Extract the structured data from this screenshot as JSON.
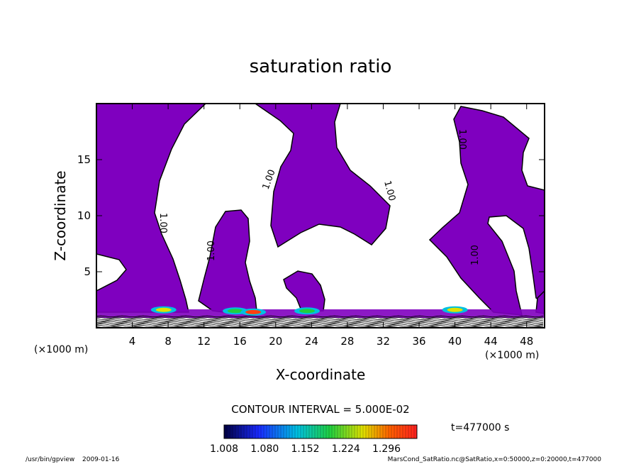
{
  "chart_data": {
    "type": "heatmap",
    "title": "saturation ratio",
    "xlabel": "X-coordinate",
    "ylabel": "Z-coordinate",
    "x_unit": "(×1000 m)",
    "z_unit": "(×1000 m)",
    "xlim": [
      0,
      50
    ],
    "ylim": [
      0,
      20
    ],
    "x_ticks": [
      4,
      8,
      12,
      16,
      20,
      24,
      28,
      32,
      36,
      40,
      44,
      48
    ],
    "y_ticks": [
      5,
      10,
      15
    ],
    "contour_interval_text": "CONTOUR INTERVAL = 5.000E-02",
    "contour_label": "1.00",
    "time_text": "t=477000 s",
    "colorbar_ticks": [
      "1.008",
      "1.080",
      "1.152",
      "1.224",
      "1.296"
    ],
    "colorbar_range": [
      1.008,
      1.35
    ],
    "supersaturated_color": "#7f00bf",
    "hotspots_km": [
      {
        "x": 7.5,
        "z": 1.6,
        "peak": 1.25
      },
      {
        "x": 15.5,
        "z": 1.5,
        "peak": 1.2
      },
      {
        "x": 17.5,
        "z": 1.4,
        "peak": 1.35
      },
      {
        "x": 23.5,
        "z": 1.5,
        "peak": 1.15
      },
      {
        "x": 40.0,
        "z": 1.6,
        "peak": 1.25
      }
    ]
  },
  "footer": {
    "program": "/usr/bin/gpview",
    "date": "2009-01-16",
    "source": "MarsCond_SatRatio.nc@SatRatio,x=0:50000,z=0:20000,t=477000"
  }
}
